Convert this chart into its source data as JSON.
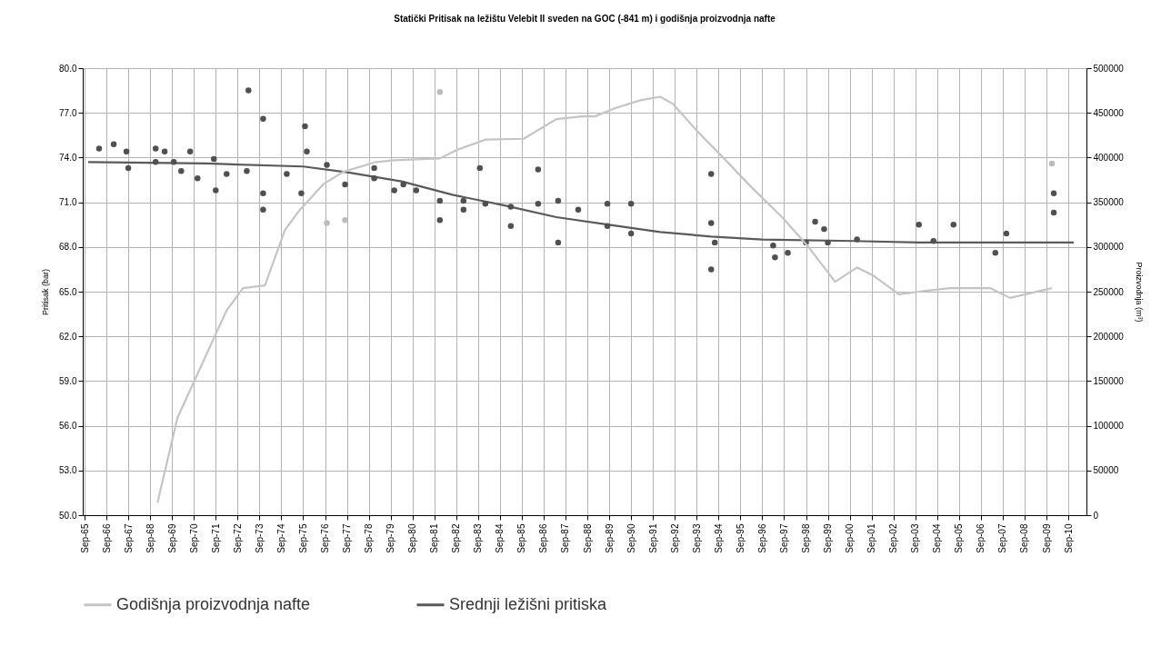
{
  "chart_data": {
    "type": "line",
    "title": "Statički Pritisak na ležištu Velebit II sveden na GOC (-841 m) i godišnja proizvodnja nafte",
    "ylabel": "Pritisak (bar)",
    "y2label": "Proizvodnja (m³)",
    "xlim": [
      "1965-08",
      "2011-07"
    ],
    "xticks": [
      {
        "value": "1965-09",
        "label": "Sep-65"
      },
      {
        "value": "1966-09",
        "label": "Sep-66"
      },
      {
        "value": "1967-09",
        "label": "Sep-67"
      },
      {
        "value": "1968-09",
        "label": "Sep-68"
      },
      {
        "value": "1969-09",
        "label": "Sep-69"
      },
      {
        "value": "1970-09",
        "label": "Sep-70"
      },
      {
        "value": "1971-09",
        "label": "Sep-71"
      },
      {
        "value": "1972-09",
        "label": "Sep-72"
      },
      {
        "value": "1973-09",
        "label": "Sep-73"
      },
      {
        "value": "1974-09",
        "label": "Sep-74"
      },
      {
        "value": "1975-09",
        "label": "Sep-75"
      },
      {
        "value": "1976-09",
        "label": "Sep-76"
      },
      {
        "value": "1977-09",
        "label": "Sep-77"
      },
      {
        "value": "1978-09",
        "label": "Sep-78"
      },
      {
        "value": "1979-09",
        "label": "Sep-79"
      },
      {
        "value": "1980-09",
        "label": "Sep-80"
      },
      {
        "value": "1981-09",
        "label": "Sep-81"
      },
      {
        "value": "1982-09",
        "label": "Sep-82"
      },
      {
        "value": "1983-09",
        "label": "Sep-83"
      },
      {
        "value": "1984-09",
        "label": "Sep-84"
      },
      {
        "value": "1985-09",
        "label": "Sep-85"
      },
      {
        "value": "1986-09",
        "label": "Sep-86"
      },
      {
        "value": "1987-09",
        "label": "Sep-87"
      },
      {
        "value": "1988-09",
        "label": "Sep-88"
      },
      {
        "value": "1989-09",
        "label": "Sep-89"
      },
      {
        "value": "1990-09",
        "label": "Sep-90"
      },
      {
        "value": "1991-09",
        "label": "Sep-91"
      },
      {
        "value": "1992-09",
        "label": "Sep-92"
      },
      {
        "value": "1993-09",
        "label": "Sep-93"
      },
      {
        "value": "1994-09",
        "label": "Sep-94"
      },
      {
        "value": "1995-09",
        "label": "Sep-95"
      },
      {
        "value": "1996-09",
        "label": "Sep-96"
      },
      {
        "value": "1997-09",
        "label": "Sep-97"
      },
      {
        "value": "1998-09",
        "label": "Sep-98"
      },
      {
        "value": "1999-09",
        "label": "Sep-99"
      },
      {
        "value": "2000-09",
        "label": "Sep-00"
      },
      {
        "value": "2001-09",
        "label": "Sep-01"
      },
      {
        "value": "2002-09",
        "label": "Sep-02"
      },
      {
        "value": "2003-09",
        "label": "Sep-03"
      },
      {
        "value": "2004-09",
        "label": "Sep-04"
      },
      {
        "value": "2005-09",
        "label": "Sep-05"
      },
      {
        "value": "2006-09",
        "label": "Sep-06"
      },
      {
        "value": "2007-09",
        "label": "Sep-07"
      },
      {
        "value": "2008-09",
        "label": "Sep-08"
      },
      {
        "value": "2009-09",
        "label": "Sep-09"
      },
      {
        "value": "2010-09",
        "label": "Sep-10"
      }
    ],
    "ylim": [
      50,
      80
    ],
    "yticks": [
      {
        "value": 50,
        "label": "50.0"
      },
      {
        "value": 53,
        "label": "53.0"
      },
      {
        "value": 56,
        "label": "56.0"
      },
      {
        "value": 59,
        "label": "59.0"
      },
      {
        "value": 62,
        "label": "62.0"
      },
      {
        "value": 65,
        "label": "65.0"
      },
      {
        "value": 68,
        "label": "68.0"
      },
      {
        "value": 71,
        "label": "71.0"
      },
      {
        "value": 74,
        "label": "74.0"
      },
      {
        "value": 77,
        "label": "77.0"
      },
      {
        "value": 80,
        "label": "80.0"
      }
    ],
    "y2lim": [
      0,
      500000
    ],
    "y2ticks": [
      0,
      50000,
      100000,
      150000,
      200000,
      250000,
      300000,
      350000,
      400000,
      450000,
      500000
    ],
    "grid": true,
    "legend": "bottom",
    "series": [
      {
        "name": "Godišnja proizvodnja nafte",
        "axis": "y2",
        "color": "#c4c4c4",
        "line_style": "solid",
        "marker": "none",
        "x": [
          "1969-01",
          "1969-12",
          "1971-01",
          "1972-03",
          "1972-12",
          "1973-12",
          "1974-11",
          "1975-07",
          "1976-08",
          "1977-07",
          "1979-01",
          "1979-11",
          "1981-12",
          "1982-10",
          "1984-01",
          "1985-10",
          "1987-04",
          "1988-06",
          "1989-01",
          "1989-12",
          "1991-02",
          "1992-01",
          "1992-08",
          "1993-10",
          "1994-12",
          "1996-03",
          "1997-08",
          "1998-10",
          "2000-01",
          "2001-01",
          "2001-10",
          "2002-12",
          "2003-11",
          "2005-04",
          "2007-02",
          "2008-01",
          "2009-12"
        ],
        "values": [
          14000,
          109000,
          167000,
          229000,
          254000,
          257000,
          319000,
          341000,
          370000,
          384000,
          395000,
          397000,
          399000,
          409000,
          420000,
          421000,
          443000,
          446000,
          446000,
          455000,
          464000,
          468000,
          460000,
          428000,
          399000,
          367000,
          333000,
          301000,
          261000,
          277000,
          268000,
          247000,
          250000,
          254000,
          254000,
          243000,
          254000
        ]
      },
      {
        "name": "Srednji ležišni pritiska",
        "color": "#5a5a5a",
        "line_style": "solid",
        "marker": "none",
        "x": [
          "1965-11",
          "1971-04",
          "1975-09",
          "1977-10",
          "1980-03",
          "1982-07",
          "1984-11",
          "1987-04",
          "1989-08",
          "1992-01",
          "1994-05",
          "1996-09",
          "2000-11",
          "2003-11",
          "2010-12"
        ],
        "values": [
          73.7,
          73.6,
          73.4,
          73.0,
          72.4,
          71.5,
          70.8,
          70.0,
          69.5,
          69.0,
          68.7,
          68.5,
          68.4,
          68.3,
          68.3
        ]
      },
      {
        "type": "scatter",
        "color": "#505050",
        "marker": "circle",
        "x": [
          "1966-05",
          "1967-01",
          "1967-08",
          "1967-09",
          "1968-12",
          "1968-12",
          "1969-05",
          "1969-10",
          "1970-02",
          "1970-07",
          "1970-11",
          "1971-08",
          "1971-09",
          "1972-03",
          "1973-02",
          "1973-03",
          "1973-11",
          "1973-11",
          "1973-11",
          "1974-12",
          "1975-08",
          "1975-10",
          "1975-11",
          "1976-10",
          "1977-08",
          "1978-12",
          "1978-12",
          "1979-11",
          "1980-04",
          "1980-11",
          "1981-12",
          "1981-12",
          "1983-01",
          "1983-01",
          "1983-10",
          "1984-01",
          "1985-03",
          "1985-03",
          "1986-06",
          "1986-06",
          "1987-05",
          "1987-05",
          "1988-04",
          "1989-08",
          "1989-08",
          "1990-09",
          "1990-09",
          "1994-05",
          "1994-05",
          "1994-07",
          "1994-05",
          "1997-03",
          "1997-04",
          "1997-11",
          "1998-09",
          "1999-02",
          "1999-07",
          "1999-09",
          "2001-01",
          "2003-11",
          "2004-07",
          "2005-06",
          "2007-05",
          "2007-11",
          "2010-01",
          "2010-01"
        ],
        "values": [
          74.6,
          74.9,
          74.4,
          73.3,
          73.7,
          74.6,
          74.4,
          73.7,
          73.1,
          74.4,
          72.6,
          73.9,
          71.8,
          72.9,
          73.1,
          78.5,
          76.6,
          71.6,
          70.5,
          72.9,
          71.6,
          76.1,
          74.4,
          73.5,
          72.2,
          73.3,
          72.6,
          71.8,
          72.2,
          71.8,
          71.1,
          69.8,
          71.1,
          70.5,
          73.3,
          70.9,
          70.7,
          69.4,
          70.9,
          73.2,
          71.1,
          68.3,
          70.5,
          70.9,
          69.4,
          70.9,
          68.9,
          72.9,
          69.6,
          68.3,
          66.5,
          68.1,
          67.3,
          67.6,
          68.3,
          69.7,
          69.2,
          68.3,
          68.5,
          69.5,
          68.4,
          69.5,
          67.6,
          68.9,
          71.6,
          70.3
        ]
      },
      {
        "type": "scatter",
        "color": "#bcbcbc",
        "marker": "circle",
        "x": [
          "1976-10",
          "1977-08",
          "1981-12",
          "2009-12"
        ],
        "values": [
          69.6,
          69.8,
          78.4,
          73.6
        ]
      }
    ]
  }
}
